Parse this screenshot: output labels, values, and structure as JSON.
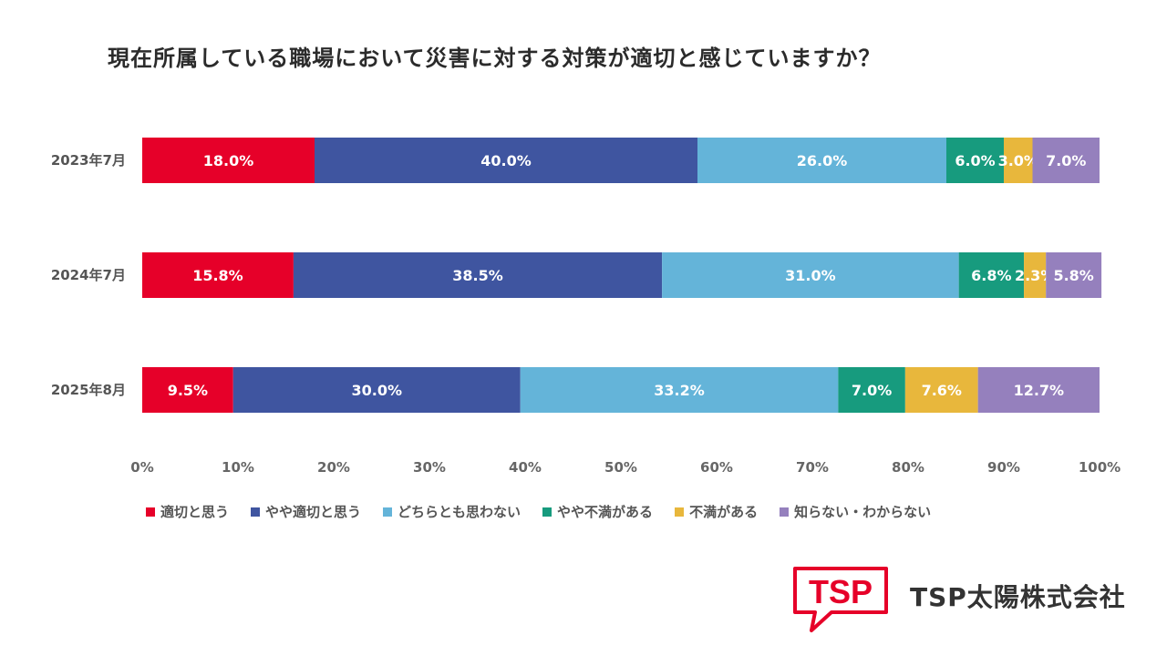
{
  "chart_data": {
    "type": "stacked-bar-horizontal",
    "title": "現在所属している職場において災害に対する対策が適切と感じていますか？",
    "categories": [
      "2023年7月",
      "2024年7月",
      "2025年8月"
    ],
    "series": [
      {
        "name": "適切と思う",
        "color": "#e60029",
        "values": [
          18.0,
          15.8,
          9.5
        ],
        "labels": [
          "18.0%",
          "15.8%",
          "9.5%"
        ]
      },
      {
        "name": "やや適切と思う",
        "color": "#3f55a0",
        "values": [
          40.0,
          38.5,
          30.0
        ],
        "labels": [
          "40.0%",
          "38.5%",
          "30.0%"
        ]
      },
      {
        "name": "どちらとも思わない",
        "color": "#64b4d9",
        "values": [
          26.0,
          31.0,
          33.2
        ],
        "labels": [
          "26.0%",
          "31.0%",
          "33.2%"
        ]
      },
      {
        "name": "やや不満がある",
        "color": "#179b7e",
        "values": [
          6.0,
          6.8,
          7.0
        ],
        "labels": [
          "6.0%",
          "6.8%",
          "7.0%"
        ]
      },
      {
        "name": "不満がある",
        "color": "#e8b73c",
        "values": [
          3.0,
          2.3,
          7.6
        ],
        "labels": [
          "3.0%",
          "2.3%",
          "7.6%"
        ]
      },
      {
        "name": "知らない・わからない",
        "color": "#9580bd",
        "values": [
          7.0,
          5.8,
          12.7
        ],
        "labels": [
          "7.0%",
          "5.8%",
          "12.7%"
        ]
      }
    ],
    "xlim": [
      0,
      100
    ],
    "x_ticks": [
      "0%",
      "10%",
      "20%",
      "30%",
      "40%",
      "50%",
      "60%",
      "70%",
      "80%",
      "90%",
      "100%"
    ],
    "legend_position": "bottom",
    "grid": false
  },
  "brand": {
    "logo_text": "TSP",
    "company_name": "TSP太陽株式会社",
    "color": "#e60029"
  }
}
